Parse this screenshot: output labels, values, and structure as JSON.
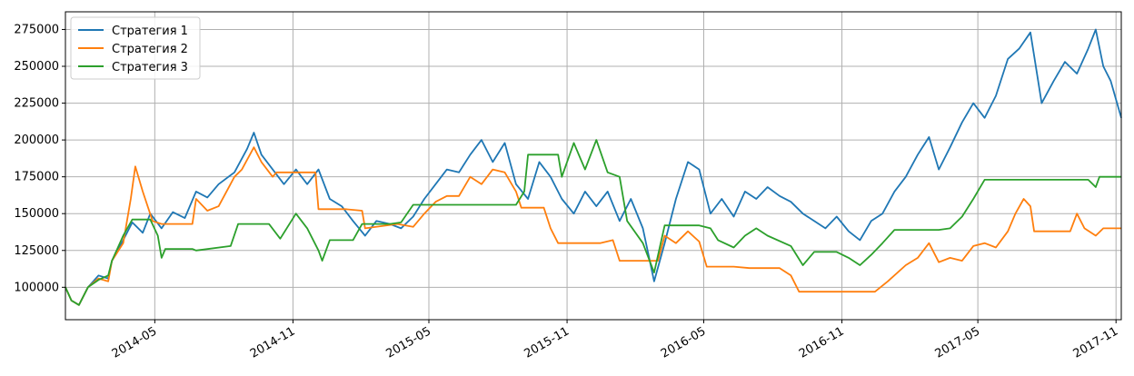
{
  "chart_data": {
    "type": "line",
    "title": "",
    "xlabel": "",
    "ylabel": "",
    "x_domain": [
      "2014-01-02",
      "2017-11-08"
    ],
    "ylim": [
      78000,
      287000
    ],
    "grid": true,
    "legend_position": "top-left",
    "y_ticks": [
      100000,
      125000,
      150000,
      175000,
      200000,
      225000,
      250000,
      275000
    ],
    "y_tick_labels": [
      "100000",
      "125000",
      "150000",
      "175000",
      "200000",
      "225000",
      "250000",
      "275000"
    ],
    "x_ticks": [
      "2014-05-01",
      "2014-11-01",
      "2015-05-01",
      "2015-11-01",
      "2016-05-01",
      "2016-11-01",
      "2017-05-01",
      "2017-11-01"
    ],
    "x_tick_labels": [
      "2014-05",
      "2014-11",
      "2015-05",
      "2015-11",
      "2016-05",
      "2016-11",
      "2017-05",
      "2017-11"
    ],
    "series": [
      {
        "name": "Стратегия 1",
        "color": "#1f77b4",
        "points": [
          [
            "2014-01-02",
            100000
          ],
          [
            "2014-01-10",
            91000
          ],
          [
            "2014-01-20",
            88000
          ],
          [
            "2014-02-01",
            100000
          ],
          [
            "2014-02-15",
            108000
          ],
          [
            "2014-02-28",
            106000
          ],
          [
            "2014-03-05",
            118000
          ],
          [
            "2014-03-20",
            132000
          ],
          [
            "2014-04-01",
            144000
          ],
          [
            "2014-04-15",
            137000
          ],
          [
            "2014-04-25",
            150000
          ],
          [
            "2014-05-10",
            140000
          ],
          [
            "2014-05-25",
            151000
          ],
          [
            "2014-06-10",
            147000
          ],
          [
            "2014-06-25",
            165000
          ],
          [
            "2014-07-10",
            161000
          ],
          [
            "2014-07-25",
            170000
          ],
          [
            "2014-08-15",
            178000
          ],
          [
            "2014-09-01",
            194000
          ],
          [
            "2014-09-10",
            205000
          ],
          [
            "2014-09-20",
            190000
          ],
          [
            "2014-10-05",
            180000
          ],
          [
            "2014-10-20",
            170000
          ],
          [
            "2014-11-05",
            180000
          ],
          [
            "2014-11-20",
            170000
          ],
          [
            "2014-12-05",
            180000
          ],
          [
            "2014-12-20",
            160000
          ],
          [
            "2015-01-05",
            155000
          ],
          [
            "2015-01-20",
            145000
          ],
          [
            "2015-02-05",
            135000
          ],
          [
            "2015-02-20",
            145000
          ],
          [
            "2015-03-10",
            143000
          ],
          [
            "2015-03-25",
            140000
          ],
          [
            "2015-04-10",
            148000
          ],
          [
            "2015-04-25",
            160000
          ],
          [
            "2015-05-10",
            170000
          ],
          [
            "2015-05-25",
            180000
          ],
          [
            "2015-06-10",
            178000
          ],
          [
            "2015-06-25",
            190000
          ],
          [
            "2015-07-10",
            200000
          ],
          [
            "2015-07-25",
            185000
          ],
          [
            "2015-08-10",
            198000
          ],
          [
            "2015-08-25",
            170000
          ],
          [
            "2015-09-10",
            160000
          ],
          [
            "2015-09-25",
            185000
          ],
          [
            "2015-10-10",
            175000
          ],
          [
            "2015-10-25",
            160000
          ],
          [
            "2015-11-10",
            150000
          ],
          [
            "2015-11-25",
            165000
          ],
          [
            "2015-12-10",
            155000
          ],
          [
            "2015-12-25",
            165000
          ],
          [
            "2016-01-10",
            145000
          ],
          [
            "2016-01-25",
            160000
          ],
          [
            "2016-02-10",
            140000
          ],
          [
            "2016-02-25",
            104000
          ],
          [
            "2016-03-10",
            130000
          ],
          [
            "2016-03-25",
            160000
          ],
          [
            "2016-04-10",
            185000
          ],
          [
            "2016-04-25",
            180000
          ],
          [
            "2016-05-10",
            150000
          ],
          [
            "2016-05-25",
            160000
          ],
          [
            "2016-06-10",
            148000
          ],
          [
            "2016-06-25",
            165000
          ],
          [
            "2016-07-10",
            160000
          ],
          [
            "2016-07-25",
            168000
          ],
          [
            "2016-08-10",
            162000
          ],
          [
            "2016-08-25",
            158000
          ],
          [
            "2016-09-10",
            150000
          ],
          [
            "2016-09-25",
            145000
          ],
          [
            "2016-10-10",
            140000
          ],
          [
            "2016-10-25",
            148000
          ],
          [
            "2016-11-10",
            138000
          ],
          [
            "2016-11-25",
            132000
          ],
          [
            "2016-12-10",
            145000
          ],
          [
            "2016-12-25",
            150000
          ],
          [
            "2017-01-10",
            165000
          ],
          [
            "2017-01-25",
            175000
          ],
          [
            "2017-02-10",
            190000
          ],
          [
            "2017-02-25",
            202000
          ],
          [
            "2017-03-10",
            180000
          ],
          [
            "2017-03-25",
            195000
          ],
          [
            "2017-04-10",
            212000
          ],
          [
            "2017-04-25",
            225000
          ],
          [
            "2017-05-10",
            215000
          ],
          [
            "2017-05-25",
            230000
          ],
          [
            "2017-06-10",
            255000
          ],
          [
            "2017-06-25",
            262000
          ],
          [
            "2017-07-10",
            273000
          ],
          [
            "2017-07-25",
            225000
          ],
          [
            "2017-08-10",
            240000
          ],
          [
            "2017-08-25",
            253000
          ],
          [
            "2017-09-10",
            245000
          ],
          [
            "2017-09-25",
            262000
          ],
          [
            "2017-10-05",
            275000
          ],
          [
            "2017-10-15",
            250000
          ],
          [
            "2017-10-25",
            240000
          ],
          [
            "2017-11-08",
            215000
          ]
        ]
      },
      {
        "name": "Стратегия 2",
        "color": "#ff7f0e",
        "points": [
          [
            "2014-01-02",
            100000
          ],
          [
            "2014-01-10",
            91000
          ],
          [
            "2014-01-20",
            88000
          ],
          [
            "2014-02-01",
            100000
          ],
          [
            "2014-02-15",
            106000
          ],
          [
            "2014-02-28",
            104000
          ],
          [
            "2014-03-05",
            118000
          ],
          [
            "2014-03-20",
            130000
          ],
          [
            "2014-03-30",
            160000
          ],
          [
            "2014-04-05",
            182000
          ],
          [
            "2014-04-15",
            165000
          ],
          [
            "2014-04-28",
            145000
          ],
          [
            "2014-05-10",
            143000
          ],
          [
            "2014-05-25",
            143000
          ],
          [
            "2014-06-20",
            143000
          ],
          [
            "2014-06-25",
            160000
          ],
          [
            "2014-07-10",
            152000
          ],
          [
            "2014-07-25",
            155000
          ],
          [
            "2014-08-15",
            175000
          ],
          [
            "2014-08-25",
            180000
          ],
          [
            "2014-09-10",
            195000
          ],
          [
            "2014-09-20",
            185000
          ],
          [
            "2014-10-05",
            175000
          ],
          [
            "2014-10-10",
            178000
          ],
          [
            "2014-11-15",
            178000
          ],
          [
            "2014-12-01",
            178000
          ],
          [
            "2014-12-05",
            153000
          ],
          [
            "2015-01-10",
            153000
          ],
          [
            "2015-02-01",
            152000
          ],
          [
            "2015-02-05",
            140000
          ],
          [
            "2015-03-20",
            143000
          ],
          [
            "2015-04-10",
            141000
          ],
          [
            "2015-04-25",
            150000
          ],
          [
            "2015-05-10",
            158000
          ],
          [
            "2015-05-25",
            162000
          ],
          [
            "2015-06-10",
            162000
          ],
          [
            "2015-06-25",
            175000
          ],
          [
            "2015-07-10",
            170000
          ],
          [
            "2015-07-25",
            180000
          ],
          [
            "2015-08-10",
            178000
          ],
          [
            "2015-08-25",
            165000
          ],
          [
            "2015-09-01",
            154000
          ],
          [
            "2015-10-01",
            154000
          ],
          [
            "2015-10-10",
            140000
          ],
          [
            "2015-10-20",
            130000
          ],
          [
            "2015-11-10",
            130000
          ],
          [
            "2015-12-15",
            130000
          ],
          [
            "2016-01-01",
            132000
          ],
          [
            "2016-01-10",
            118000
          ],
          [
            "2016-03-01",
            118000
          ],
          [
            "2016-03-10",
            135000
          ],
          [
            "2016-03-25",
            130000
          ],
          [
            "2016-04-10",
            138000
          ],
          [
            "2016-04-25",
            131000
          ],
          [
            "2016-05-05",
            114000
          ],
          [
            "2016-06-10",
            114000
          ],
          [
            "2016-07-01",
            113000
          ],
          [
            "2016-08-10",
            113000
          ],
          [
            "2016-08-25",
            108000
          ],
          [
            "2016-09-05",
            97000
          ],
          [
            "2016-10-01",
            97000
          ],
          [
            "2016-12-15",
            97000
          ],
          [
            "2017-01-01",
            104000
          ],
          [
            "2017-01-25",
            115000
          ],
          [
            "2017-02-10",
            120000
          ],
          [
            "2017-02-25",
            130000
          ],
          [
            "2017-03-10",
            117000
          ],
          [
            "2017-03-25",
            120000
          ],
          [
            "2017-04-10",
            118000
          ],
          [
            "2017-04-25",
            128000
          ],
          [
            "2017-05-10",
            130000
          ],
          [
            "2017-05-25",
            127000
          ],
          [
            "2017-06-10",
            138000
          ],
          [
            "2017-06-20",
            150000
          ],
          [
            "2017-07-01",
            160000
          ],
          [
            "2017-07-10",
            155000
          ],
          [
            "2017-07-15",
            138000
          ],
          [
            "2017-08-01",
            138000
          ],
          [
            "2017-09-01",
            138000
          ],
          [
            "2017-09-10",
            150000
          ],
          [
            "2017-09-20",
            140000
          ],
          [
            "2017-10-05",
            135000
          ],
          [
            "2017-10-15",
            140000
          ],
          [
            "2017-11-08",
            140000
          ]
        ]
      },
      {
        "name": "Стратегия 3",
        "color": "#2ca02c",
        "points": [
          [
            "2014-01-02",
            100000
          ],
          [
            "2014-01-10",
            91000
          ],
          [
            "2014-01-20",
            88000
          ],
          [
            "2014-02-01",
            100000
          ],
          [
            "2014-02-15",
            105000
          ],
          [
            "2014-02-28",
            108000
          ],
          [
            "2014-03-05",
            118000
          ],
          [
            "2014-03-20",
            135000
          ],
          [
            "2014-04-01",
            146000
          ],
          [
            "2014-04-25",
            146000
          ],
          [
            "2014-05-05",
            135000
          ],
          [
            "2014-05-10",
            120000
          ],
          [
            "2014-05-15",
            126000
          ],
          [
            "2014-06-20",
            126000
          ],
          [
            "2014-06-25",
            125000
          ],
          [
            "2014-08-10",
            128000
          ],
          [
            "2014-08-20",
            143000
          ],
          [
            "2014-09-30",
            143000
          ],
          [
            "2014-10-15",
            133000
          ],
          [
            "2014-11-05",
            150000
          ],
          [
            "2014-11-20",
            140000
          ],
          [
            "2014-12-05",
            125000
          ],
          [
            "2014-12-10",
            118000
          ],
          [
            "2014-12-20",
            132000
          ],
          [
            "2015-01-20",
            132000
          ],
          [
            "2015-02-01",
            143000
          ],
          [
            "2015-03-10",
            143000
          ],
          [
            "2015-03-25",
            144000
          ],
          [
            "2015-04-10",
            156000
          ],
          [
            "2015-08-25",
            156000
          ],
          [
            "2015-09-05",
            165000
          ],
          [
            "2015-09-10",
            190000
          ],
          [
            "2015-10-20",
            190000
          ],
          [
            "2015-10-25",
            175000
          ],
          [
            "2015-11-10",
            198000
          ],
          [
            "2015-11-25",
            180000
          ],
          [
            "2015-12-10",
            200000
          ],
          [
            "2015-12-25",
            178000
          ],
          [
            "2016-01-10",
            175000
          ],
          [
            "2016-01-20",
            145000
          ],
          [
            "2016-02-10",
            130000
          ],
          [
            "2016-02-25",
            110000
          ],
          [
            "2016-03-10",
            142000
          ],
          [
            "2016-04-25",
            142000
          ],
          [
            "2016-05-10",
            140000
          ],
          [
            "2016-05-20",
            132000
          ],
          [
            "2016-06-10",
            127000
          ],
          [
            "2016-06-25",
            135000
          ],
          [
            "2016-07-10",
            140000
          ],
          [
            "2016-07-25",
            135000
          ],
          [
            "2016-08-25",
            128000
          ],
          [
            "2016-09-10",
            115000
          ],
          [
            "2016-09-25",
            124000
          ],
          [
            "2016-10-25",
            124000
          ],
          [
            "2016-11-10",
            120000
          ],
          [
            "2016-11-25",
            115000
          ],
          [
            "2016-12-10",
            122000
          ],
          [
            "2016-12-25",
            130000
          ],
          [
            "2017-01-10",
            139000
          ],
          [
            "2017-02-10",
            139000
          ],
          [
            "2017-03-10",
            139000
          ],
          [
            "2017-03-25",
            140000
          ],
          [
            "2017-04-10",
            148000
          ],
          [
            "2017-04-25",
            160000
          ],
          [
            "2017-05-10",
            173000
          ],
          [
            "2017-06-10",
            173000
          ],
          [
            "2017-07-10",
            173000
          ],
          [
            "2017-08-10",
            173000
          ],
          [
            "2017-09-10",
            173000
          ],
          [
            "2017-09-25",
            173000
          ],
          [
            "2017-10-05",
            168000
          ],
          [
            "2017-10-10",
            175000
          ],
          [
            "2017-11-08",
            175000
          ]
        ]
      }
    ]
  }
}
